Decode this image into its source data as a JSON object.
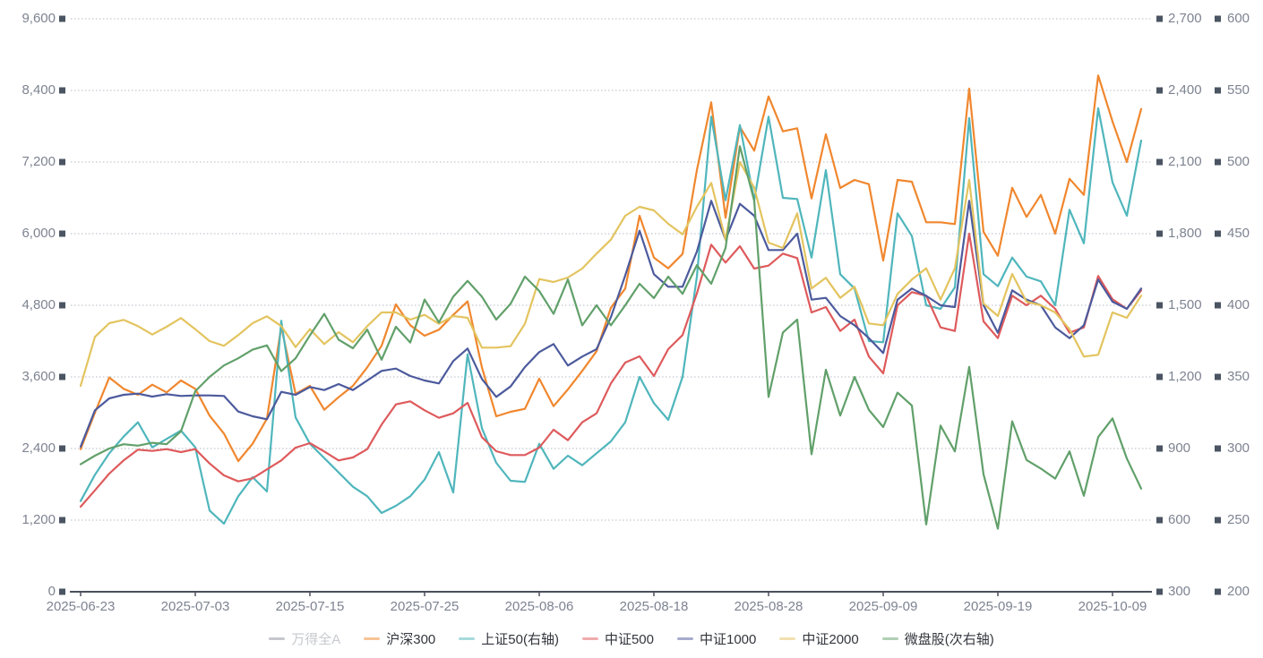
{
  "chart_data": {
    "type": "line",
    "title": "",
    "legend_position": "bottom",
    "grid": "horizontal-dotted",
    "x_tick_labels": [
      "2025-06-23",
      "2025-07-03",
      "2025-07-15",
      "2025-07-25",
      "2025-08-06",
      "2025-08-18",
      "2025-08-28",
      "2025-09-09",
      "2025-09-19",
      "2025-10-09"
    ],
    "x_tick_indices": [
      0,
      8,
      16,
      24,
      32,
      40,
      48,
      56,
      64,
      72
    ],
    "x_dates": [
      "2025-06-23",
      "2025-06-24",
      "2025-06-25",
      "2025-06-26",
      "2025-06-27",
      "2025-06-30",
      "2025-07-01",
      "2025-07-02",
      "2025-07-03",
      "2025-07-04",
      "2025-07-07",
      "2025-07-08",
      "2025-07-09",
      "2025-07-10",
      "2025-07-11",
      "2025-07-14",
      "2025-07-15",
      "2025-07-16",
      "2025-07-17",
      "2025-07-18",
      "2025-07-21",
      "2025-07-22",
      "2025-07-23",
      "2025-07-24",
      "2025-07-25",
      "2025-07-28",
      "2025-07-29",
      "2025-07-30",
      "2025-07-31",
      "2025-08-01",
      "2025-08-04",
      "2025-08-05",
      "2025-08-06",
      "2025-08-07",
      "2025-08-08",
      "2025-08-11",
      "2025-08-12",
      "2025-08-13",
      "2025-08-14",
      "2025-08-15",
      "2025-08-18",
      "2025-08-19",
      "2025-08-20",
      "2025-08-21",
      "2025-08-22",
      "2025-08-25",
      "2025-08-26",
      "2025-08-27",
      "2025-08-28",
      "2025-08-29",
      "2025-09-01",
      "2025-09-02",
      "2025-09-03",
      "2025-09-04",
      "2025-09-05",
      "2025-09-08",
      "2025-09-09",
      "2025-09-10",
      "2025-09-11",
      "2025-09-12",
      "2025-09-15",
      "2025-09-16",
      "2025-09-17",
      "2025-09-18",
      "2025-09-19",
      "2025-09-22",
      "2025-09-23",
      "2025-09-24",
      "2025-09-25",
      "2025-09-26",
      "2025-09-29",
      "2025-09-30",
      "2025-10-09",
      "2025-10-10",
      "2025-10-13"
    ],
    "axes": {
      "left": {
        "min": 0,
        "max": 9600,
        "step": 1200,
        "labels": [
          "0",
          "1,200",
          "2,400",
          "3,600",
          "4,800",
          "6,000",
          "7,200",
          "8,400",
          "9,600"
        ]
      },
      "right": {
        "min": 300,
        "max": 2700,
        "step": 300,
        "labels": [
          "300",
          "600",
          "900",
          "1,200",
          "1,500",
          "1,800",
          "2,100",
          "2,400",
          "2,700"
        ]
      },
      "right2": {
        "min": 200,
        "max": 600,
        "step": 50,
        "labels": [
          "200",
          "250",
          "300",
          "350",
          "400",
          "450",
          "500",
          "550",
          "600"
        ]
      }
    },
    "colors": {
      "axis_text": "#7d8391",
      "tick_square": "#4a5462",
      "grid_line": "#b6bac4",
      "axis_line": "#4a505c",
      "dimmed": "#c6c9ce"
    },
    "series": [
      {
        "id": "wdqa",
        "name": "万得全A",
        "axis": "left",
        "color": "#c4c7cc",
        "selected": false,
        "values": []
      },
      {
        "id": "hs300",
        "name": "沪深300",
        "axis": "left",
        "color": "#f0872e",
        "selected": true,
        "values": [
          2390,
          3000,
          3590,
          3400,
          3300,
          3470,
          3340,
          3540,
          3400,
          2950,
          2650,
          2190,
          2480,
          2900,
          4440,
          3315,
          3450,
          3050,
          3260,
          3450,
          3760,
          4120,
          4815,
          4465,
          4290,
          4390,
          4640,
          4865,
          3760,
          2940,
          3015,
          3065,
          3570,
          3110,
          3390,
          3700,
          4030,
          4760,
          5080,
          6300,
          5600,
          5420,
          5660,
          7065,
          8200,
          6265,
          7790,
          7390,
          8300,
          7715,
          7765,
          6590,
          7665,
          6765,
          6900,
          6830,
          5550,
          6900,
          6870,
          6190,
          6190,
          6160,
          8430,
          6030,
          5630,
          6770,
          6280,
          6650,
          6000,
          6920,
          6650,
          8650,
          7880,
          7200,
          8090
        ]
      },
      {
        "id": "sz50",
        "name": "上证50(右轴)",
        "axis": "right",
        "color": "#4fb6bc",
        "selected": true,
        "values": [
          680,
          790,
          880,
          950,
          1010,
          905,
          940,
          975,
          905,
          640,
          585,
          700,
          780,
          720,
          1435,
          1030,
          920,
          860,
          800,
          740,
          700,
          630,
          660,
          700,
          770,
          885,
          716,
          1295,
          985,
          840,
          765,
          760,
          920,
          815,
          870,
          830,
          880,
          930,
          1010,
          1200,
          1090,
          1020,
          1200,
          1620,
          2290,
          1940,
          2255,
          1940,
          2290,
          1950,
          1945,
          1700,
          2066,
          1630,
          1570,
          1350,
          1345,
          1885,
          1790,
          1500,
          1485,
          1575,
          2284,
          1630,
          1580,
          1700,
          1620,
          1600,
          1500,
          1900,
          1760,
          2325,
          2015,
          1875,
          2190
        ]
      },
      {
        "id": "zz500",
        "name": "中证500",
        "axis": "left",
        "color": "#de5a5c",
        "selected": true,
        "values": [
          1425,
          1700,
          1980,
          2200,
          2380,
          2360,
          2390,
          2340,
          2390,
          2150,
          1950,
          1850,
          1900,
          2050,
          2200,
          2415,
          2490,
          2350,
          2200,
          2250,
          2390,
          2800,
          3140,
          3190,
          3040,
          2915,
          2990,
          3165,
          2590,
          2355,
          2290,
          2290,
          2415,
          2715,
          2540,
          2840,
          2990,
          3490,
          3840,
          3945,
          3615,
          4065,
          4300,
          5000,
          5815,
          5515,
          5790,
          5415,
          5465,
          5665,
          5590,
          4680,
          4770,
          4370,
          4560,
          3940,
          3660,
          4800,
          5020,
          4960,
          4430,
          4370,
          6000,
          4530,
          4250,
          4960,
          4800,
          4960,
          4740,
          4340,
          4430,
          5290,
          4900,
          4740,
          5050
        ]
      },
      {
        "id": "zz1000",
        "name": "中证1000",
        "axis": "left",
        "color": "#4c5a9c",
        "selected": true,
        "values": [
          2430,
          3040,
          3240,
          3300,
          3320,
          3270,
          3310,
          3280,
          3290,
          3290,
          3280,
          3020,
          2940,
          2890,
          3350,
          3300,
          3430,
          3380,
          3480,
          3380,
          3540,
          3700,
          3740,
          3615,
          3540,
          3490,
          3865,
          4075,
          3565,
          3265,
          3440,
          3765,
          4015,
          4150,
          3790,
          3940,
          4065,
          4600,
          5300,
          6050,
          5320,
          5110,
          5110,
          5700,
          6550,
          5900,
          6500,
          6300,
          5725,
          5725,
          6000,
          4895,
          4925,
          4620,
          4465,
          4250,
          4000,
          4895,
          5080,
          4957,
          4800,
          4770,
          6550,
          4800,
          4340,
          5050,
          4895,
          4800,
          4430,
          4250,
          4465,
          5230,
          4860,
          4740,
          5080
        ]
      },
      {
        "id": "zz2000",
        "name": "中证2000",
        "axis": "left",
        "color": "#e3c45f",
        "selected": true,
        "values": [
          3450,
          4270,
          4500,
          4555,
          4450,
          4310,
          4440,
          4585,
          4400,
          4200,
          4120,
          4300,
          4500,
          4615,
          4450,
          4100,
          4400,
          4150,
          4350,
          4180,
          4450,
          4680,
          4680,
          4560,
          4640,
          4490,
          4620,
          4590,
          4090,
          4090,
          4115,
          4490,
          5240,
          5190,
          5265,
          5415,
          5665,
          5900,
          6300,
          6450,
          6390,
          6165,
          5990,
          6450,
          6850,
          5900,
          7200,
          6770,
          5850,
          5760,
          6340,
          5080,
          5260,
          4925,
          5110,
          4495,
          4465,
          4990,
          5230,
          5420,
          4895,
          5420,
          6900,
          4830,
          4620,
          5325,
          4860,
          4800,
          4680,
          4400,
          3940,
          3970,
          4680,
          4590,
          4960
        ]
      },
      {
        "id": "wpg",
        "name": "微盘股(次右轴)",
        "axis": "right2",
        "color": "#61a06a",
        "selected": true,
        "values": [
          289,
          295,
          300,
          303,
          302,
          304,
          303,
          312,
          340,
          350,
          358,
          363,
          369,
          372,
          354,
          363,
          379,
          394,
          376,
          370,
          383,
          362,
          385,
          374,
          404,
          388,
          406,
          417,
          406,
          390,
          401,
          420,
          410,
          394,
          418,
          386,
          400,
          386,
          400,
          415,
          405,
          420,
          408,
          428,
          415,
          440,
          511,
          473,
          336,
          381,
          390,
          296,
          355,
          323,
          350,
          327,
          315,
          339,
          330,
          247,
          316,
          298,
          357,
          282,
          244,
          319,
          292,
          286,
          279,
          298,
          267,
          308,
          321,
          293,
          272
        ]
      }
    ]
  }
}
